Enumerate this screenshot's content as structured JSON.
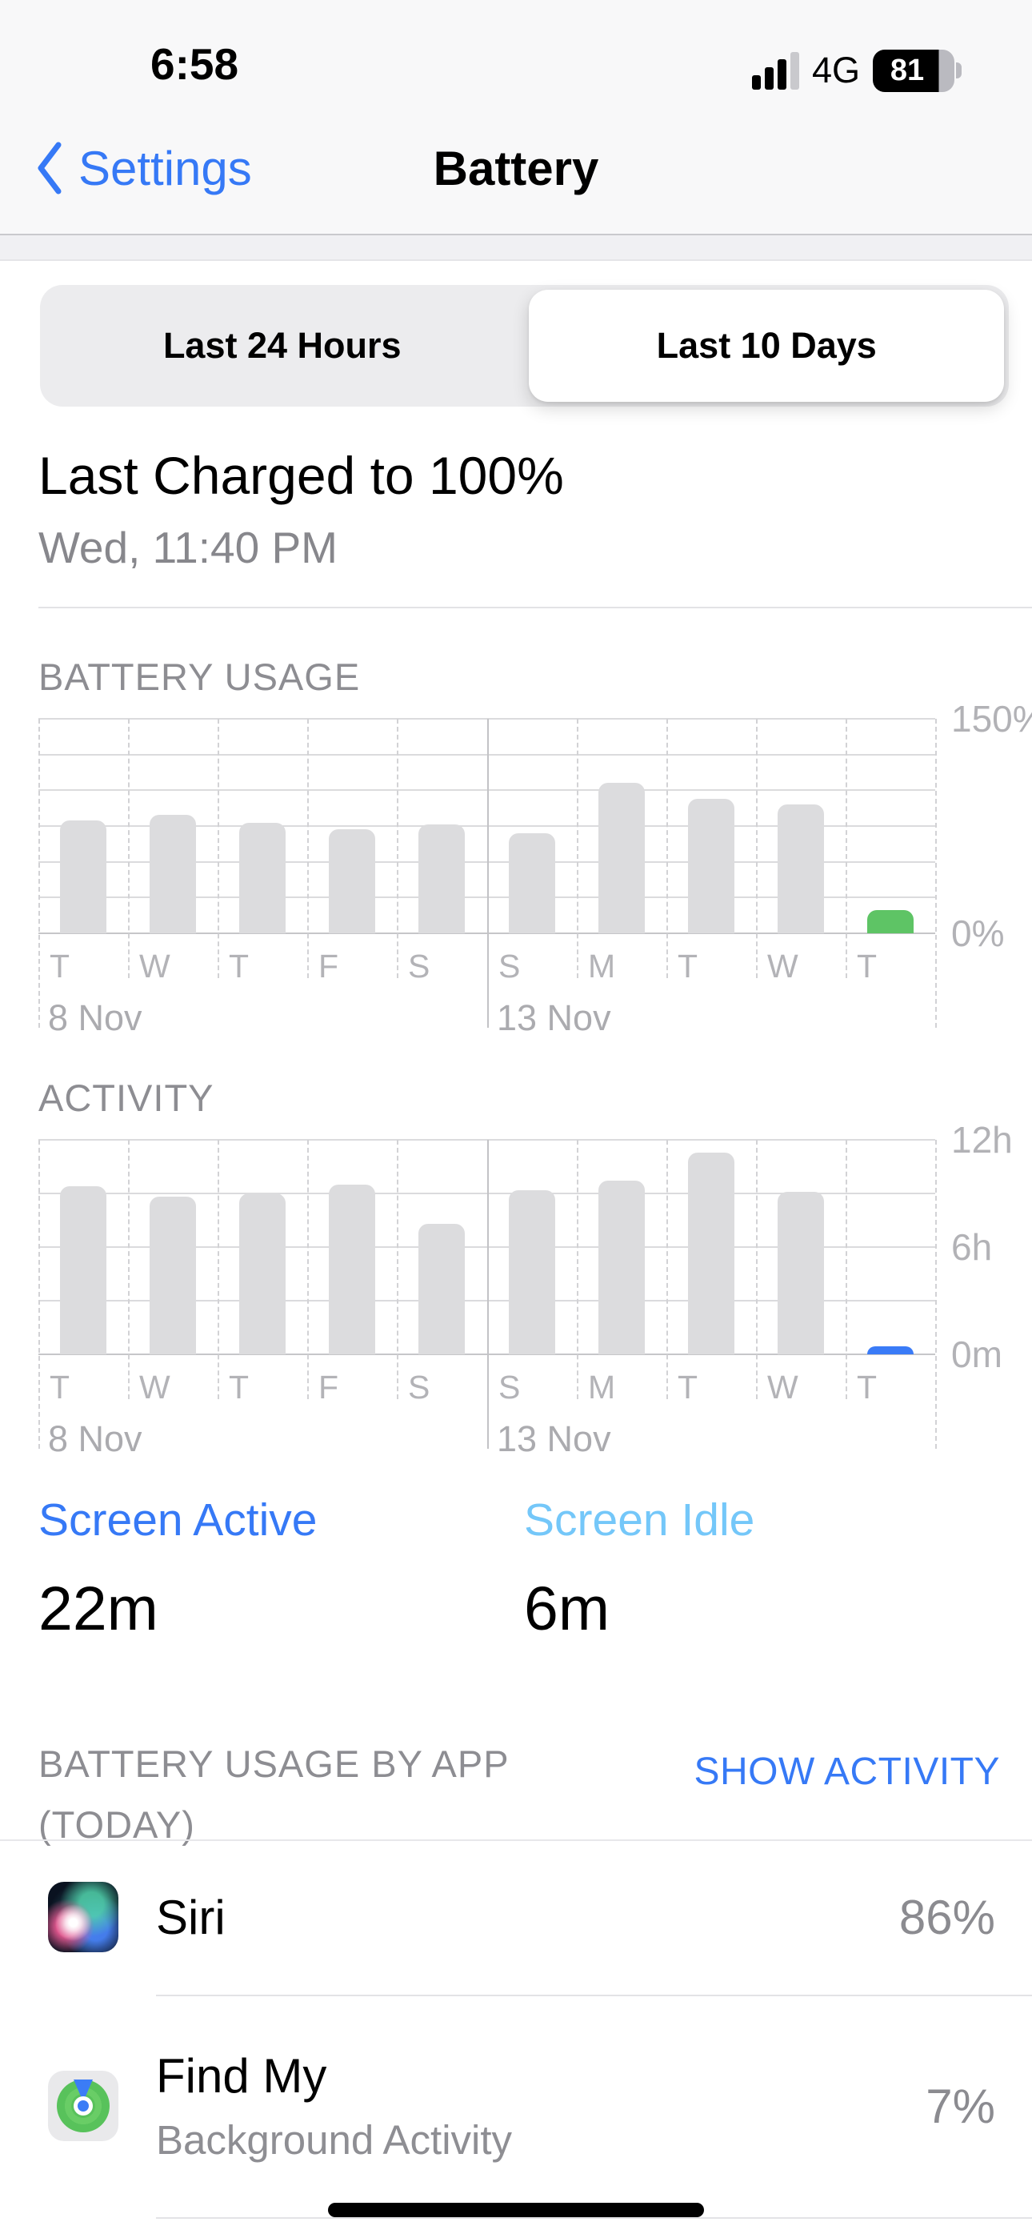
{
  "status_bar": {
    "time": "6:58",
    "network": "4G",
    "battery_percent": "81"
  },
  "nav": {
    "back_label": "Settings",
    "title": "Battery"
  },
  "segmented": {
    "options": [
      {
        "label": "Last 24 Hours",
        "selected": false
      },
      {
        "label": "Last 10 Days",
        "selected": true
      }
    ]
  },
  "last_charged": {
    "title": "Last Charged to 100%",
    "subtitle": "Wed, 11:40 PM"
  },
  "chart_data": [
    {
      "type": "bar",
      "title": "BATTERY USAGE",
      "categories": [
        "T",
        "W",
        "T",
        "F",
        "S",
        "S",
        "M",
        "T",
        "W",
        "T"
      ],
      "values": [
        79,
        83,
        77,
        73,
        76,
        70,
        105,
        94,
        90,
        16
      ],
      "ylim": [
        0,
        150
      ],
      "gridline_step": 25,
      "yticks": [
        {
          "value": 150,
          "label": "150%"
        },
        {
          "value": 0,
          "label": "0%"
        }
      ],
      "x_period_labels": [
        {
          "column": 0,
          "label": "8 Nov"
        },
        {
          "column": 5,
          "label": "13 Nov"
        }
      ],
      "grid": true,
      "legend_position": "none",
      "bar_color": "#dcdcde",
      "highlight_index": 9,
      "highlight_color": "#5ec465"
    },
    {
      "type": "bar",
      "title": "ACTIVITY",
      "categories": [
        "T",
        "W",
        "T",
        "F",
        "S",
        "S",
        "M",
        "T",
        "W",
        "T"
      ],
      "values": [
        9.4,
        8.8,
        9.0,
        9.5,
        7.3,
        9.2,
        9.7,
        11.3,
        9.1,
        0.45
      ],
      "ylim": [
        0,
        12
      ],
      "gridline_step": 3,
      "yticks": [
        {
          "value": 12,
          "label": "12h"
        },
        {
          "value": 6,
          "label": "6h"
        },
        {
          "value": 0,
          "label": "0m"
        }
      ],
      "x_period_labels": [
        {
          "column": 0,
          "label": "8 Nov"
        },
        {
          "column": 5,
          "label": "13 Nov"
        }
      ],
      "grid": true,
      "legend_position": "none",
      "bar_color": "#dcdcde",
      "highlight_index": 9,
      "highlight_color": "#3a7bf7"
    }
  ],
  "screen_stats": [
    {
      "label": "Screen Active",
      "value": "22m",
      "color": "#3679f6"
    },
    {
      "label": "Screen Idle",
      "value": "6m",
      "color": "#74c7f9"
    }
  ],
  "apps_section": {
    "header": "BATTERY USAGE BY APP (TODAY)",
    "action_label": "SHOW ACTIVITY",
    "apps": [
      {
        "name": "Siri",
        "percent": "86%"
      },
      {
        "name": "Find My",
        "subtitle": "Background Activity",
        "percent": "7%"
      }
    ]
  },
  "colors": {
    "accent_blue": "#3679f6",
    "light_blue": "#74c7f9",
    "green": "#5ec465",
    "bar_gray": "#dcdcde"
  }
}
